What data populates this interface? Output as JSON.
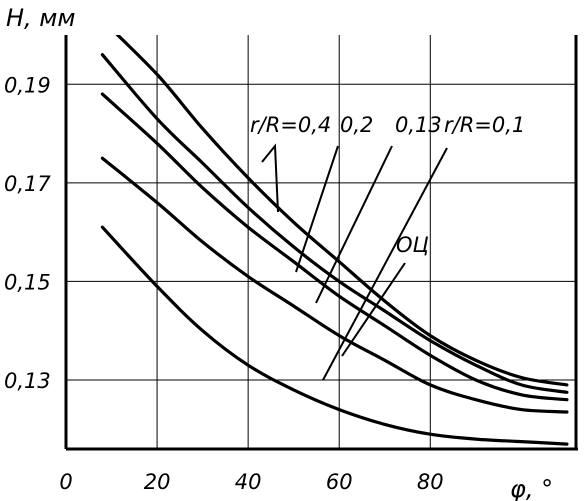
{
  "chart_data": {
    "type": "line",
    "title": "",
    "ylabel": "H, мм",
    "xlabel": "φ, °",
    "xlim": [
      0,
      112
    ],
    "ylim": [
      0.116,
      0.2
    ],
    "x_ticks": [
      0,
      20,
      40,
      60,
      80
    ],
    "x_tick_labels": [
      "0",
      "20",
      "40",
      "60",
      "80"
    ],
    "y_ticks": [
      0.13,
      0.15,
      0.17,
      0.19
    ],
    "y_tick_labels": [
      "0,13",
      "0,15",
      "0,17",
      "0,19"
    ],
    "grid": true,
    "series": [
      {
        "label_ref": "r/R=0,4",
        "x": [
          8,
          20,
          30,
          40,
          50,
          60,
          70,
          80,
          90,
          100,
          110
        ],
        "y": [
          0.203,
          0.192,
          0.181,
          0.171,
          0.162,
          0.154,
          0.146,
          0.139,
          0.134,
          0.1305,
          0.129
        ]
      },
      {
        "label_ref": "0,2",
        "x": [
          8,
          20,
          30,
          40,
          50,
          60,
          70,
          80,
          90,
          100,
          110
        ],
        "y": [
          0.196,
          0.183,
          0.174,
          0.165,
          0.157,
          0.15,
          0.144,
          0.138,
          0.133,
          0.129,
          0.1275
        ]
      },
      {
        "label_ref": "0,13",
        "x": [
          8,
          20,
          30,
          40,
          50,
          60,
          70,
          80,
          90,
          100,
          110
        ],
        "y": [
          0.188,
          0.178,
          0.169,
          0.161,
          0.154,
          0.147,
          0.141,
          0.135,
          0.13,
          0.127,
          0.126
        ]
      },
      {
        "label_ref": "r/R=0,1",
        "x": [
          8,
          20,
          30,
          40,
          50,
          60,
          70,
          80,
          90,
          100,
          110
        ],
        "y": [
          0.175,
          0.166,
          0.158,
          0.151,
          0.145,
          0.139,
          0.134,
          0.129,
          0.126,
          0.124,
          0.1235
        ]
      },
      {
        "label_ref": "ОЦ",
        "x": [
          8,
          20,
          30,
          40,
          50,
          60,
          70,
          80,
          90,
          100,
          110
        ],
        "y": [
          0.161,
          0.149,
          0.14,
          0.133,
          0.128,
          0.124,
          0.121,
          0.119,
          0.118,
          0.1175,
          0.117
        ]
      }
    ],
    "annotations": [
      {
        "text": "r/R=0,4"
      },
      {
        "text": "0,2"
      },
      {
        "text": "0,13"
      },
      {
        "text": "r/R=0,1"
      },
      {
        "text": "ОЦ"
      }
    ]
  }
}
